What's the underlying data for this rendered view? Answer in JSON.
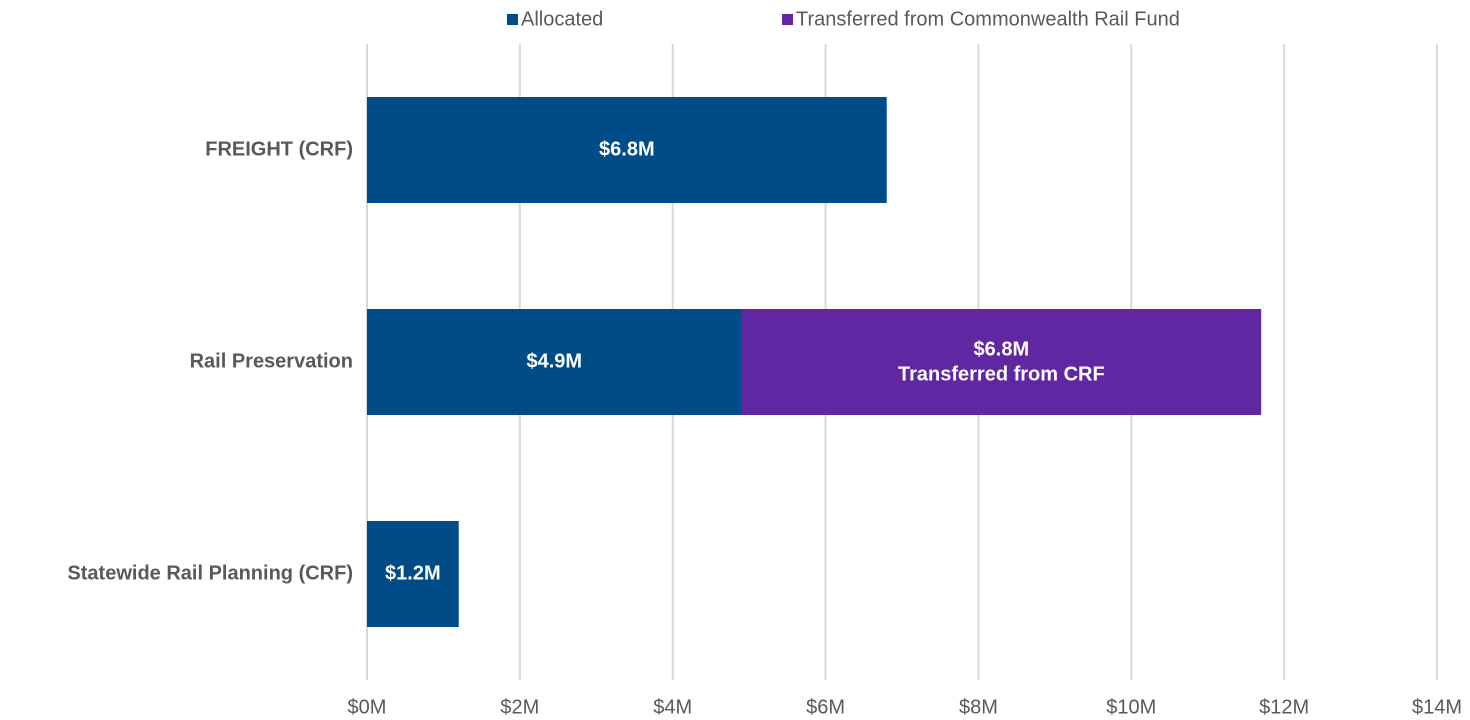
{
  "chart_data": {
    "type": "stacked_barh",
    "categories": [
      "FREIGHT (CRF)",
      "Rail Preservation",
      "Statewide Rail Planning (CRF)"
    ],
    "series": [
      {
        "name": "Allocated",
        "color": "#004c89",
        "values": [
          6.8,
          4.9,
          1.2
        ],
        "value_labels": [
          "$6.8M",
          "$4.9M",
          "$1.2M"
        ]
      },
      {
        "name": "Transferred from Commonwealth Rail Fund",
        "color": "#6126a2",
        "values": [
          null,
          6.8,
          null
        ],
        "value_labels": [
          null,
          "$6.8M",
          null
        ],
        "annotations": [
          null,
          "Transferred from CRF",
          null
        ]
      }
    ],
    "xlim": [
      0,
      14
    ],
    "xticks": [
      {
        "value": 0,
        "label": "$0M"
      },
      {
        "value": 2,
        "label": "$2M"
      },
      {
        "value": 4,
        "label": "$4M"
      },
      {
        "value": 6,
        "label": "$6M"
      },
      {
        "value": 8,
        "label": "$8M"
      },
      {
        "value": 10,
        "label": "$10M"
      },
      {
        "value": 12,
        "label": "$12M"
      },
      {
        "value": 14,
        "label": "$14M"
      }
    ],
    "grid": true,
    "legend": "top"
  }
}
